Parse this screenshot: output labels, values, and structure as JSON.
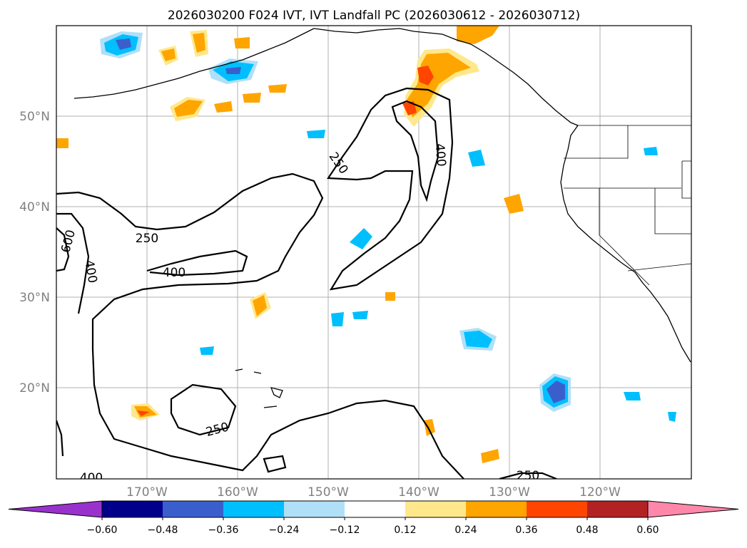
{
  "title": "2026030200 F024 IVT, IVT Landfall PC (2026030612 - 2026030712)",
  "lat_labels": [
    "50°N",
    "40°N",
    "30°N",
    "20°N"
  ],
  "lon_labels": [
    "170°W",
    "160°W",
    "150°W",
    "140°W",
    "130°W",
    "120°W"
  ],
  "contour_labels": [
    "250",
    "400",
    "250",
    "400",
    "600",
    "400",
    "250",
    "400",
    "250"
  ],
  "colorbar": {
    "ticks": [
      "−0.60",
      "−0.48",
      "−0.36",
      "−0.24",
      "−0.12",
      "0.12",
      "0.24",
      "0.36",
      "0.48",
      "0.60"
    ],
    "colors": [
      "#9932cc",
      "#00008b",
      "#3a5fcd",
      "#00bfff",
      "#afe0f8",
      "#ffffff",
      "#ffe88c",
      "#ffa500",
      "#ff4500",
      "#b22222",
      "#ff88aa"
    ]
  },
  "colors": {
    "ocean": "#ffffff",
    "grid": "#b0b0b0",
    "coast": "#000000",
    "axis_label": "#808080"
  }
}
